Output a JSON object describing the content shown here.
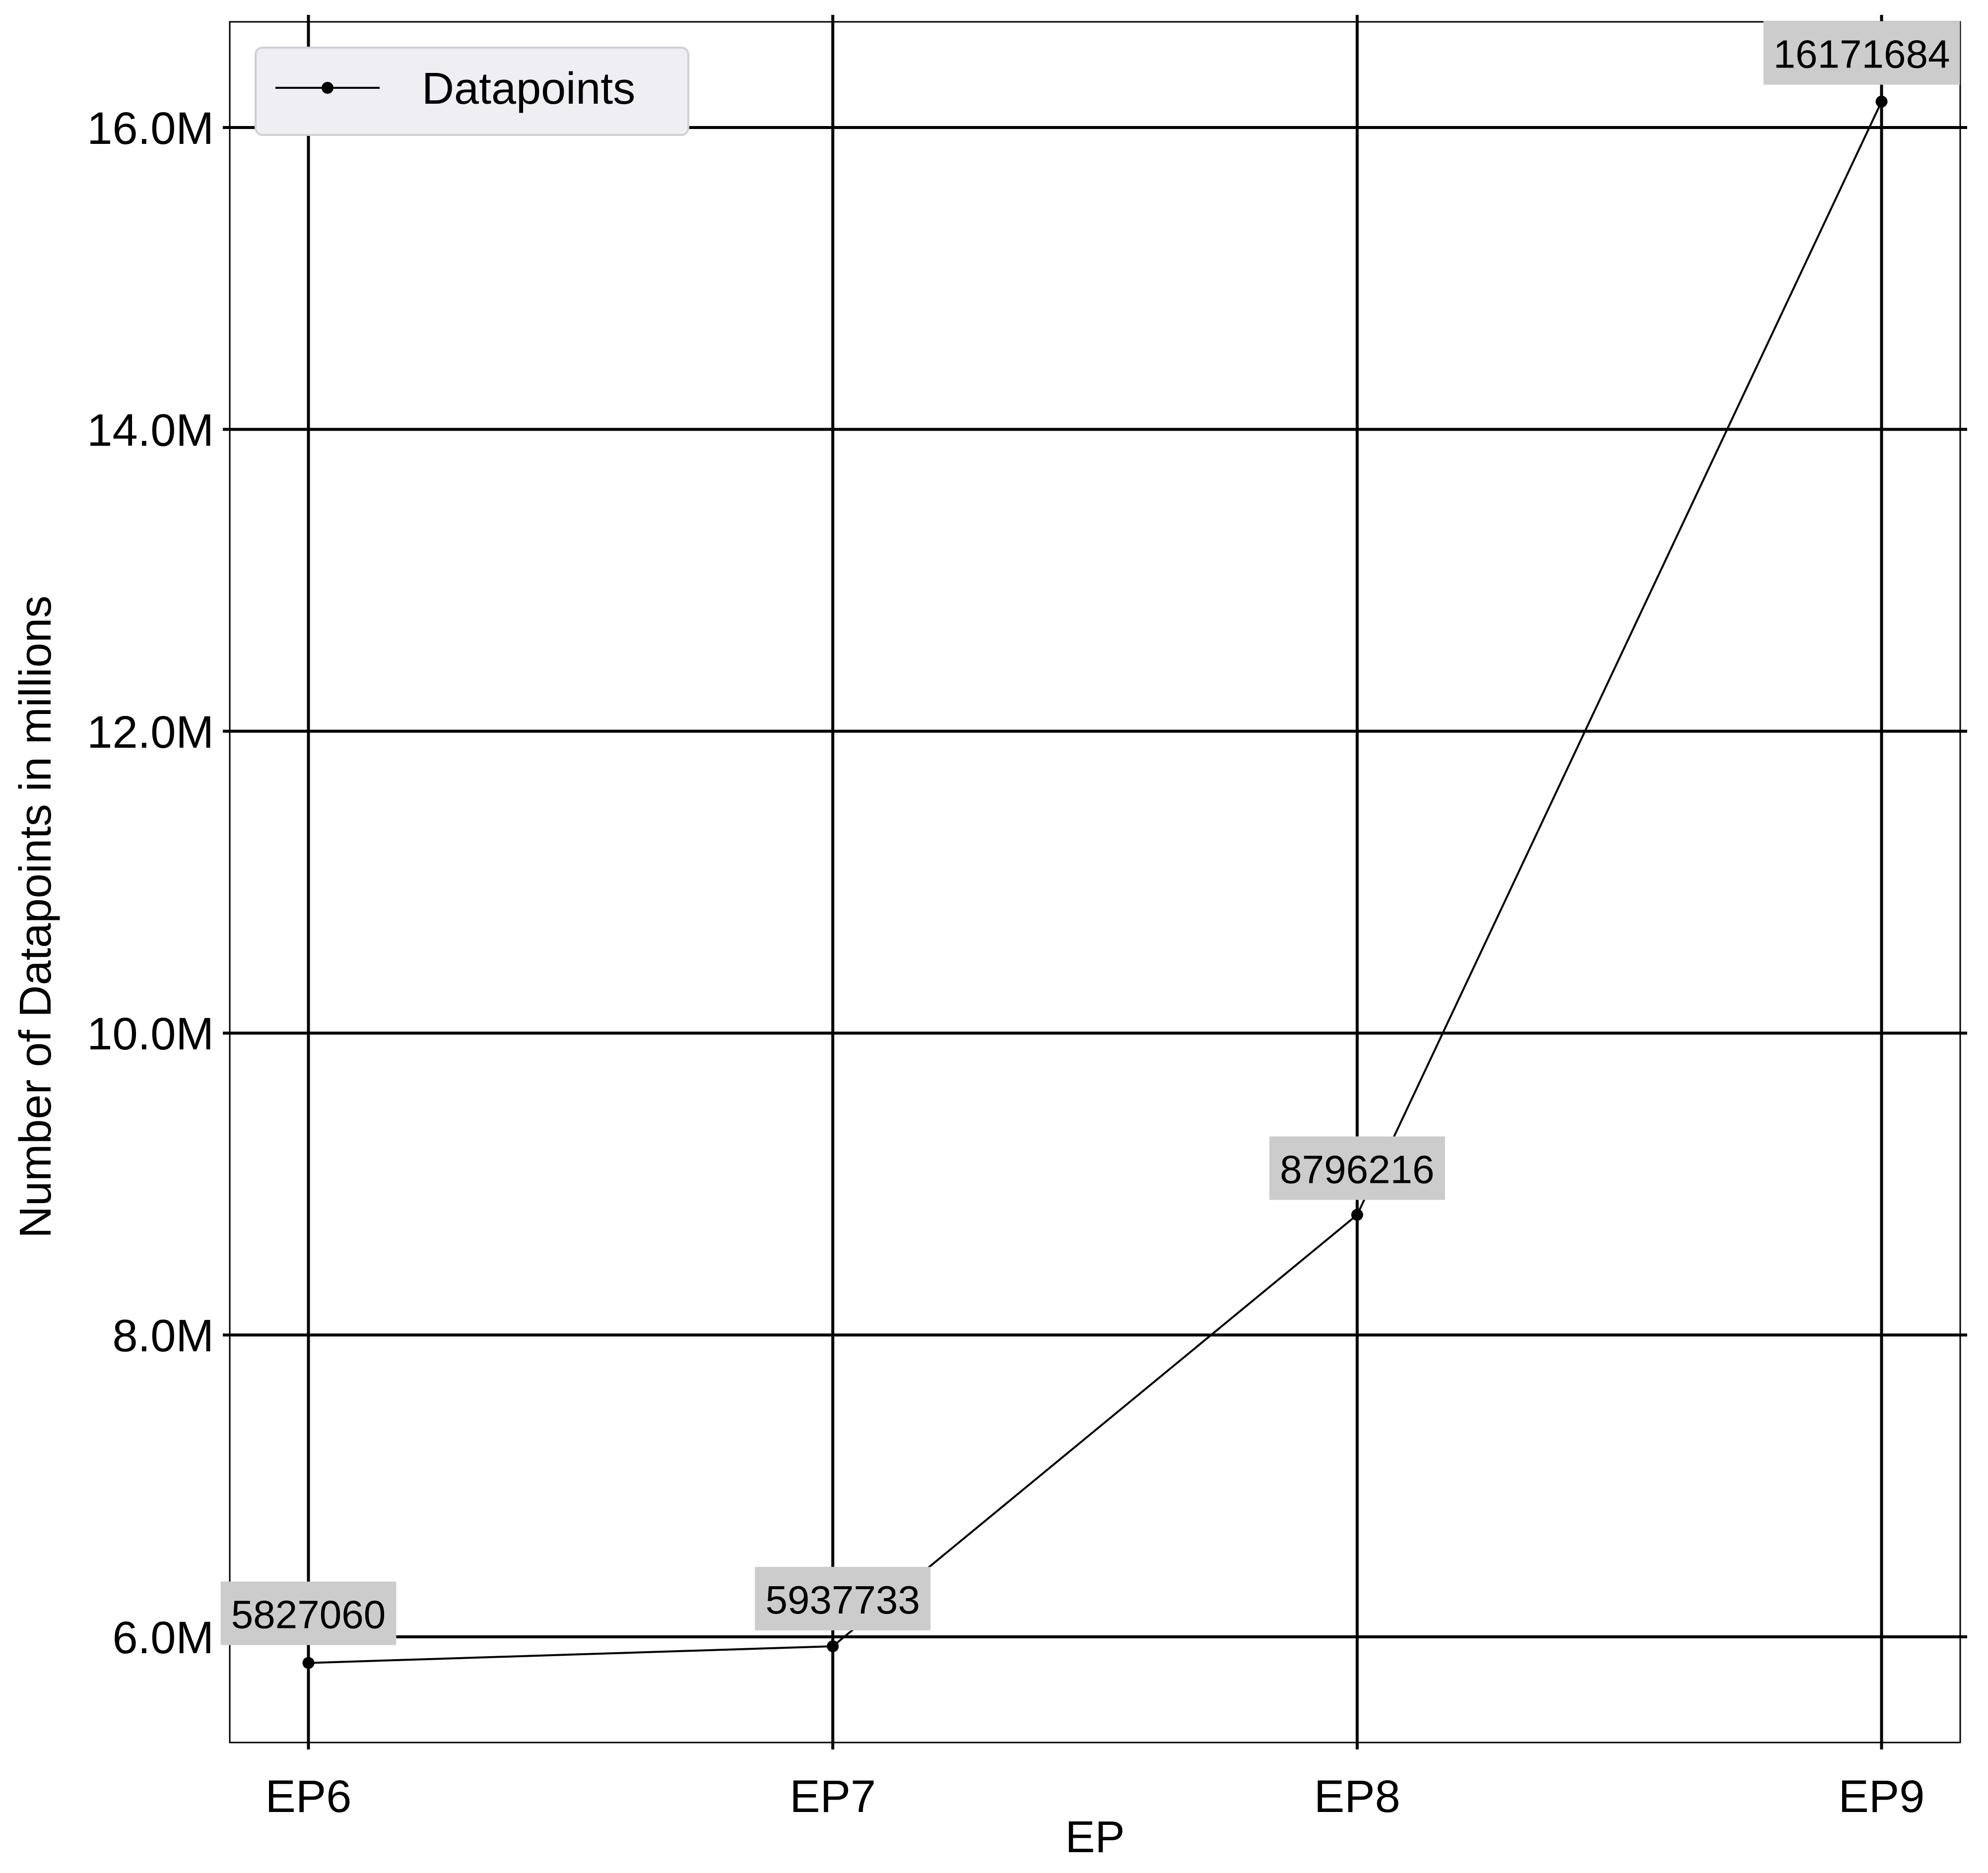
{
  "chart_data": {
    "type": "line",
    "title": "",
    "xlabel": "EP",
    "ylabel": "Number of Datapoints in millions",
    "categories": [
      "EP6",
      "EP7",
      "EP8",
      "EP9"
    ],
    "series": [
      {
        "name": "Datapoints",
        "values": [
          5827060,
          5937733,
          8796216,
          16171684
        ],
        "data_labels": [
          "5827060",
          "5937733",
          "8796216",
          "16171684"
        ]
      }
    ],
    "ylim": [
      5300000,
      16700000
    ],
    "yticks": [
      6000000,
      8000000,
      10000000,
      12000000,
      14000000,
      16000000
    ],
    "ytick_labels": [
      "6.0M",
      "8.0M",
      "10.0M",
      "12.0M",
      "14.0M",
      "16.0M"
    ],
    "grid": true,
    "legend": {
      "position": "top-left",
      "entries": [
        "Datapoints"
      ]
    },
    "colors": {
      "line": "#000000",
      "grid": "#000000",
      "label_box": "#cccccc",
      "legend_bg": "#eeeef3",
      "legend_border": "#cfcfd6",
      "background": "#ffffff"
    }
  }
}
